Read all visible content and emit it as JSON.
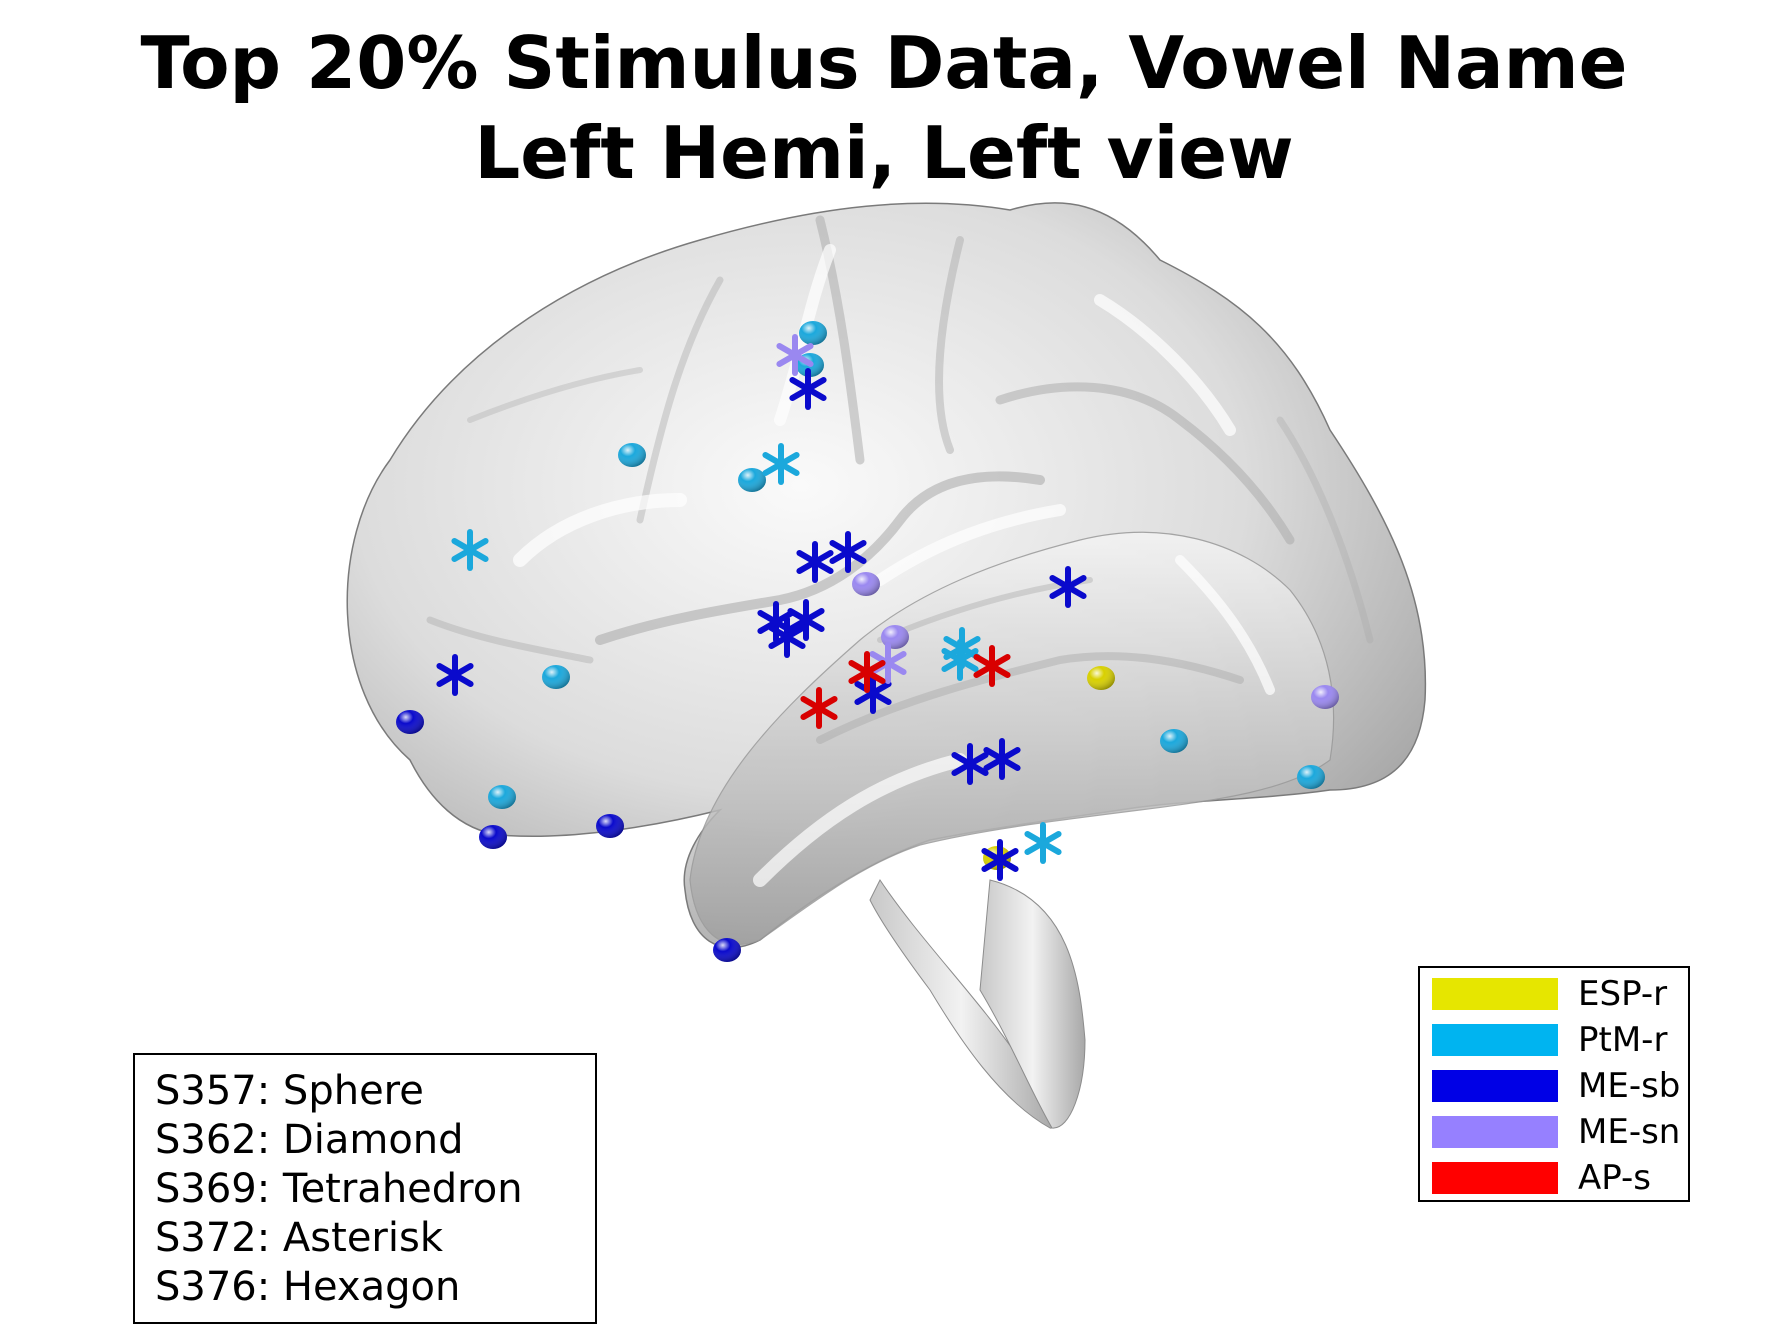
{
  "title": {
    "line1": "Top 20% Stimulus Data, Vowel Name",
    "line2": "Left Hemi, Left view"
  },
  "shape_key": {
    "lines": [
      "S357: Sphere",
      "S362: Diamond",
      "S369: Tetrahedron",
      "S372: Asterisk",
      "S376: Hexagon"
    ]
  },
  "group_legend": {
    "items": [
      {
        "label": "ESP-r",
        "color": "#e6e600"
      },
      {
        "label": "PtM-r",
        "color": "#00b4f0"
      },
      {
        "label": "ME-sb",
        "color": "#0000e6"
      },
      {
        "label": "ME-sn",
        "color": "#9680ff"
      },
      {
        "label": "AP-s",
        "color": "#ff0000"
      }
    ]
  },
  "colors": {
    "brain_surface": "#d9d9d9",
    "brain_shadow": "#8c8c8c",
    "ESP-r": "#d8d000",
    "PtM-r": "#1ba8dc",
    "ME-sb": "#0a0acc",
    "ME-sn": "#9a88f0",
    "AP-s": "#d80000"
  },
  "markers": [
    {
      "group": "PtM-r",
      "shape": "sphere"
    },
    {
      "group": "PtM-r",
      "shape": "sphere"
    },
    {
      "group": "PtM-r",
      "shape": "sphere"
    },
    {
      "group": "PtM-r",
      "shape": "sphere"
    },
    {
      "group": "PtM-r",
      "shape": "sphere"
    },
    {
      "group": "PtM-r",
      "shape": "sphere"
    },
    {
      "group": "PtM-r",
      "shape": "sphere"
    },
    {
      "group": "PtM-r",
      "shape": "sphere"
    },
    {
      "group": "ME-sb",
      "shape": "sphere"
    },
    {
      "group": "ME-sb",
      "shape": "sphere"
    },
    {
      "group": "ME-sb",
      "shape": "sphere"
    },
    {
      "group": "ME-sb",
      "shape": "sphere"
    },
    {
      "group": "ESP-r",
      "shape": "sphere"
    },
    {
      "group": "ESP-r",
      "shape": "sphere"
    },
    {
      "group": "ME-sn",
      "shape": "sphere"
    },
    {
      "group": "ME-sn",
      "shape": "sphere"
    },
    {
      "group": "ME-sn",
      "shape": "sphere"
    },
    {
      "group": "ME-sb",
      "shape": "asterisk"
    },
    {
      "group": "ME-sb",
      "shape": "asterisk"
    },
    {
      "group": "ME-sb",
      "shape": "asterisk"
    },
    {
      "group": "ME-sb",
      "shape": "asterisk"
    },
    {
      "group": "ME-sb",
      "shape": "asterisk"
    },
    {
      "group": "ME-sb",
      "shape": "asterisk"
    },
    {
      "group": "ME-sb",
      "shape": "asterisk"
    },
    {
      "group": "ME-sb",
      "shape": "asterisk"
    },
    {
      "group": "ME-sb",
      "shape": "asterisk"
    },
    {
      "group": "ME-sb",
      "shape": "asterisk"
    },
    {
      "group": "ME-sb",
      "shape": "asterisk"
    },
    {
      "group": "ME-sb",
      "shape": "asterisk"
    },
    {
      "group": "PtM-r",
      "shape": "asterisk"
    },
    {
      "group": "PtM-r",
      "shape": "asterisk"
    },
    {
      "group": "PtM-r",
      "shape": "asterisk"
    },
    {
      "group": "PtM-r",
      "shape": "asterisk"
    },
    {
      "group": "PtM-r",
      "shape": "asterisk"
    },
    {
      "group": "ME-sn",
      "shape": "asterisk"
    },
    {
      "group": "ME-sn",
      "shape": "asterisk"
    },
    {
      "group": "AP-s",
      "shape": "asterisk"
    },
    {
      "group": "AP-s",
      "shape": "asterisk"
    },
    {
      "group": "AP-s",
      "shape": "asterisk"
    }
  ]
}
